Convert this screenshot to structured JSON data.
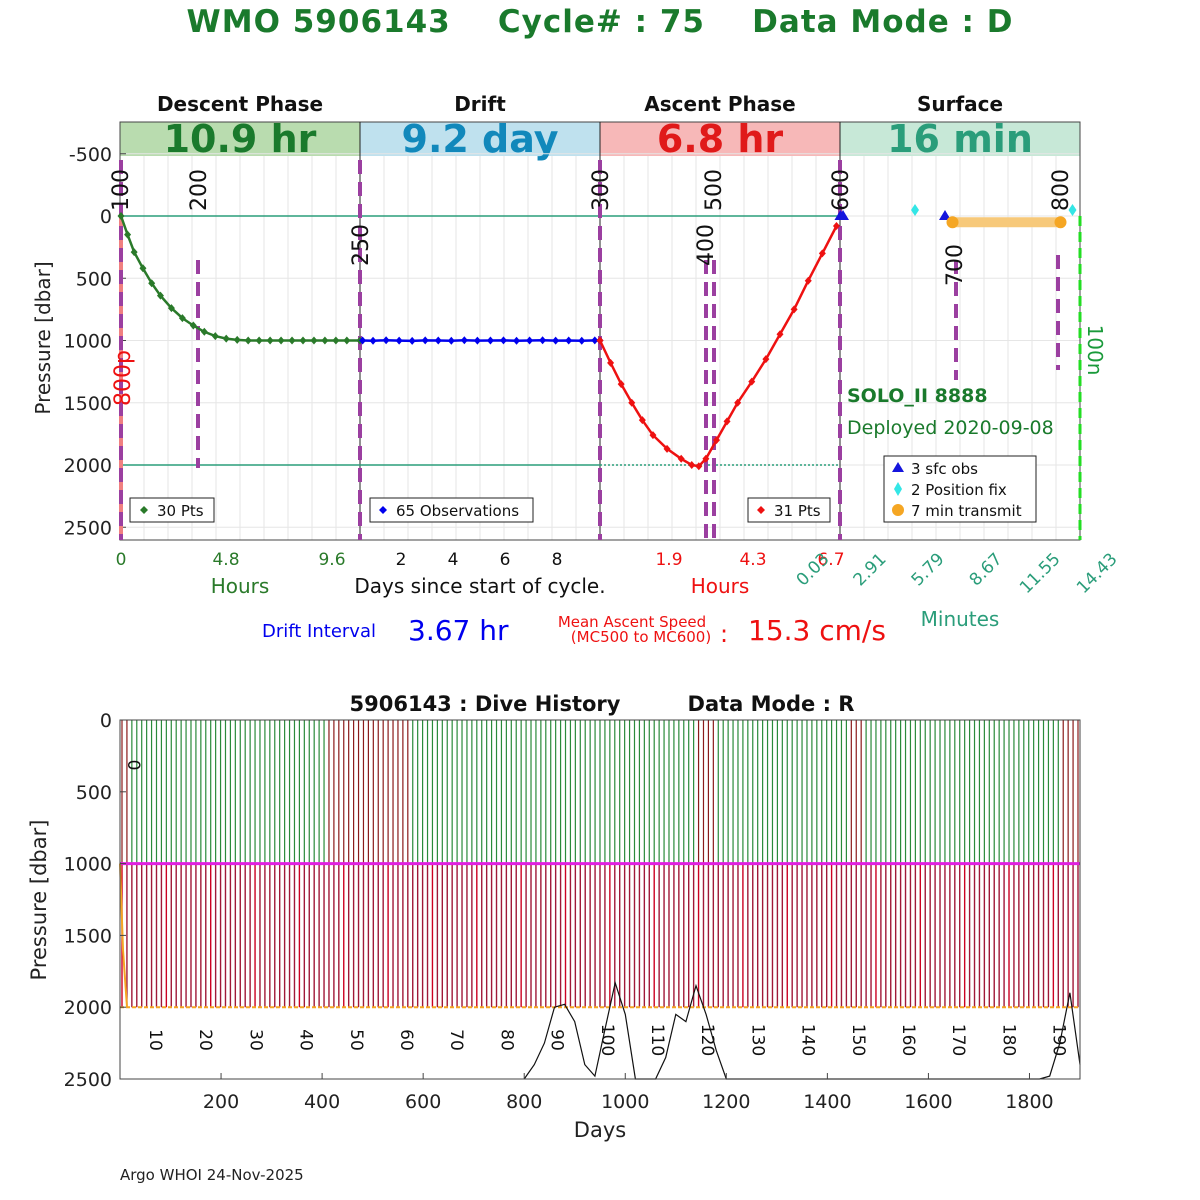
{
  "title": {
    "wmo_label": "WMO 5906143",
    "cycle_label": "Cycle# : 75",
    "mode_label": "Data Mode : D"
  },
  "colors": {
    "title_green": "#1a7a2c",
    "descent": "#2a7a2a",
    "drift": "#0000ee",
    "ascent": "#ee1111",
    "surface_teal": "#2a9d7a",
    "mc_marker": "#9b3fa0",
    "transmit": "#f5a623"
  },
  "phases": [
    {
      "label": "Descent Phase",
      "duration": "10.9 hr",
      "bg": "#b9dcaf",
      "fg": "#1a7a2c"
    },
    {
      "label": "Drift",
      "duration": "9.2 day",
      "bg": "#bfe1ee",
      "fg": "#1188bb"
    },
    {
      "label": "Ascent Phase",
      "duration": "6.8 hr",
      "bg": "#f7b8b8",
      "fg": "#e01a1a"
    },
    {
      "label": "Surface",
      "duration": "16 min",
      "bg": "#c7e8d7",
      "fg": "#2a9d7a"
    }
  ],
  "top_chart": {
    "ylabel": "Pressure [dbar]",
    "ytick_labels": [
      "-500",
      "0",
      "500",
      "1000",
      "1500",
      "2000",
      "2500"
    ],
    "mc_labels": [
      "100",
      "200",
      "250",
      "300",
      "400",
      "500",
      "600",
      "700",
      "800"
    ],
    "side_label_left": "800p",
    "side_label_right": "100n",
    "descent_ticks": [
      "0",
      "4.8",
      "9.6"
    ],
    "drift_ticks": [
      "2",
      "4",
      "6",
      "8"
    ],
    "ascent_ticks": [
      "1.9",
      "4.3",
      "6.7"
    ],
    "surface_ticks": [
      "0.03",
      "2.91",
      "5.79",
      "8.67",
      "11.55",
      "14.43"
    ],
    "hours_label_descent": "Hours",
    "days_label": "Days since start of cycle.",
    "hours_label_ascent": "Hours",
    "minutes_label": "Minutes",
    "legends": {
      "descent": "30 Pts",
      "drift": "65 Observations",
      "ascent": "31 Pts",
      "surface": [
        "3 sfc obs",
        "2 Position fix",
        "7 min transmit"
      ]
    },
    "float_type": "SOLO_II 8888",
    "deployed": "Deployed 2020-09-08",
    "drift_interval_label": "Drift Interval",
    "drift_interval_value": "3.67 hr",
    "ascent_speed_label_1": "Mean Ascent Speed",
    "ascent_speed_label_2": "(MC500 to MC600)",
    "ascent_speed_colon": ":",
    "ascent_speed_value": "15.3 cm/s"
  },
  "chart_data": [
    {
      "type": "line",
      "name": "cycle profile",
      "ylabel": "Pressure [dbar]",
      "ylim": [
        2600,
        -700
      ],
      "series": [
        {
          "name": "Descent",
          "x_hours": [
            0,
            0.3,
            0.6,
            1.0,
            1.4,
            1.8,
            2.3,
            2.8,
            3.3,
            3.8,
            4.3,
            4.8,
            5.3,
            5.8,
            6.3,
            6.8,
            7.3,
            7.8,
            8.3,
            8.8,
            9.3,
            9.8,
            10.3,
            10.9
          ],
          "pressure": [
            0,
            150,
            290,
            420,
            540,
            640,
            740,
            820,
            880,
            930,
            965,
            985,
            995,
            1000,
            1000,
            1000,
            1000,
            1000,
            1000,
            1000,
            1000,
            1000,
            1000,
            1000
          ]
        },
        {
          "name": "Drift",
          "x_days": [
            0.1,
            0.5,
            1,
            1.5,
            2,
            2.5,
            3,
            3.5,
            4,
            4.5,
            5,
            5.5,
            6,
            6.5,
            7,
            7.5,
            8,
            8.5,
            9,
            9.2
          ],
          "pressure": [
            1000,
            1002,
            998,
            1001,
            1003,
            999,
            1000,
            1002,
            998,
            1001,
            1000,
            999,
            1002,
            1000,
            998,
            1001,
            1000,
            1002,
            999,
            1000
          ]
        },
        {
          "name": "Ascent",
          "x_hours": [
            0,
            0.3,
            0.6,
            0.9,
            1.2,
            1.5,
            1.9,
            2.3,
            2.6,
            2.8,
            3.0,
            3.3,
            3.6,
            3.9,
            4.3,
            4.7,
            5.1,
            5.5,
            5.9,
            6.3,
            6.7
          ],
          "pressure": [
            1000,
            1180,
            1350,
            1500,
            1640,
            1760,
            1870,
            1950,
            2000,
            2010,
            1950,
            1800,
            1650,
            1500,
            1330,
            1150,
            950,
            750,
            520,
            300,
            80
          ]
        }
      ],
      "surface_events": {
        "sfc_obs_minutes": [
          0.03,
          0.2,
          7.0
        ],
        "position_fix_minutes": [
          5.0,
          15.5
        ],
        "transmit_minutes": [
          7.5,
          14.7
        ]
      }
    },
    {
      "type": "bar",
      "name": "dive history",
      "title": "5906143 : Dive History",
      "mode": "Data Mode : R",
      "xlabel": "Days",
      "ylabel": "Pressure [dbar]",
      "xlim": [
        0,
        1900
      ],
      "ylim": [
        2500,
        0
      ],
      "xtick_labels": [
        "200",
        "400",
        "600",
        "800",
        "1000",
        "1200",
        "1400",
        "1600",
        "1800"
      ],
      "ytick_labels": [
        "0",
        "500",
        "1000",
        "1500",
        "2000",
        "2500"
      ],
      "cycle_labels": [
        "0",
        "10",
        "20",
        "30",
        "40",
        "50",
        "60",
        "70",
        "80",
        "90",
        "100",
        "110",
        "120",
        "130",
        "140",
        "150",
        "160",
        "170",
        "180",
        "190"
      ],
      "cycles": 195,
      "park_pressure": 1000,
      "profile_pressure": 2000,
      "bathymetry_days": [
        800,
        820,
        840,
        860,
        880,
        900,
        920,
        940,
        960,
        980,
        1000,
        1020,
        1060,
        1080,
        1100,
        1120,
        1140,
        1160,
        1180,
        1200,
        1820,
        1840,
        1860,
        1880,
        1900
      ],
      "bathymetry_depth": [
        2500,
        2400,
        2250,
        2000,
        1980,
        2100,
        2400,
        2480,
        2150,
        1830,
        2050,
        2500,
        2500,
        2350,
        2050,
        2100,
        1850,
        2050,
        2300,
        2500,
        2500,
        2480,
        2250,
        1900,
        2400
      ]
    }
  ],
  "footer": "Argo WHOI 24-Nov-2025"
}
